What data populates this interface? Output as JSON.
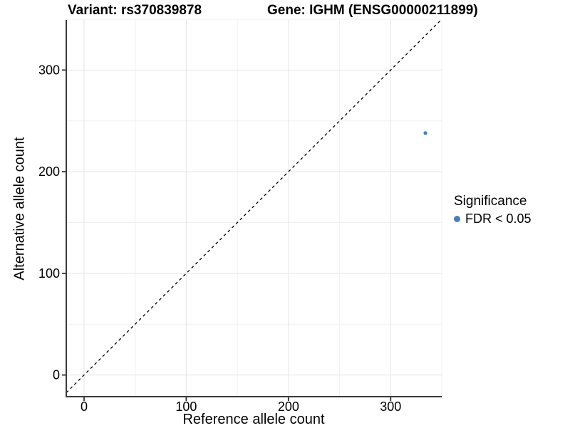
{
  "chart_data": {
    "type": "scatter",
    "title_left": "Variant: rs370839878",
    "title_right": "Gene: IGHM (ENSG00000211899)",
    "xlabel": "Reference allele count",
    "ylabel": "Alternative allele count",
    "xlim": [
      -17.4,
      350.0
    ],
    "ylim": [
      -21.3,
      349.3
    ],
    "x_major_ticks": [
      0,
      100,
      200,
      300
    ],
    "x_minor_ticks": [
      50,
      150,
      250,
      350
    ],
    "y_major_ticks": [
      0,
      100,
      200,
      300
    ],
    "y_minor_ticks": [
      50,
      150,
      250,
      350
    ],
    "grid": true,
    "identity_line": {
      "slope": 1,
      "intercept": 0,
      "style": "dashed"
    },
    "points": [
      {
        "x": 334,
        "y": 238,
        "series": "FDR < 0.05"
      }
    ],
    "legend": {
      "title": "Significance",
      "position": "right",
      "items": [
        {
          "label": "FDR < 0.05",
          "color": "#4a7db3"
        }
      ]
    },
    "colors": {
      "point": "#4a7db3",
      "axis_line": "#3a3a3a",
      "tick_mark": "#333333",
      "grid_major": "#e4e4e4",
      "grid_minor": "#f0f0f0",
      "identity_line": "#000000"
    }
  }
}
